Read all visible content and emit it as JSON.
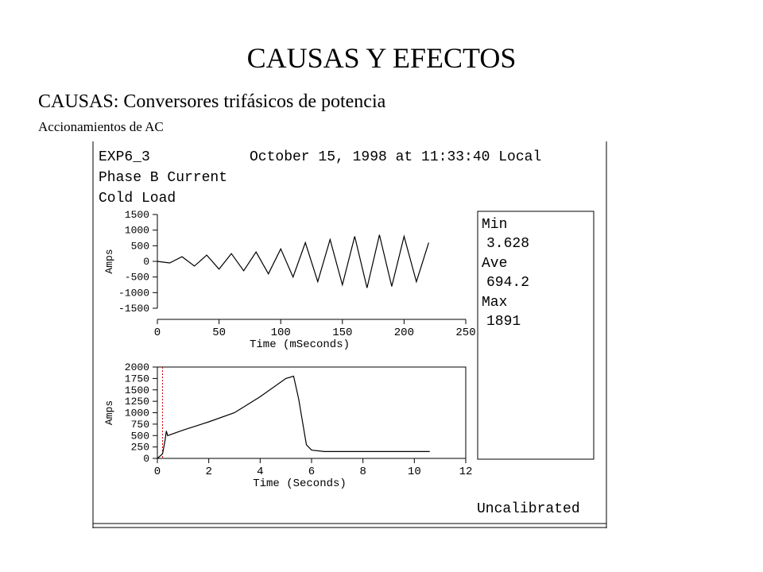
{
  "slide": {
    "title": "CAUSAS Y EFECTOS",
    "subtitle": "CAUSAS: Conversores trifásicos de potencia",
    "subsubtitle": "Accionamientos de AC"
  },
  "header": {
    "experiment": "EXP6_3",
    "datetime": "October 15, 1998 at 11:33:40 Local",
    "line2": "Phase B Current",
    "line3": "Cold Load"
  },
  "stats": {
    "min_label": "Min",
    "min_value": "3.628",
    "ave_label": "Ave",
    "ave_value": "694.2",
    "max_label": "Max",
    "max_value": "1891"
  },
  "footer": {
    "status": "Uncalibrated"
  },
  "colors": {
    "line": "#000000",
    "marker": "#cc0000"
  },
  "chart_data": [
    {
      "type": "line",
      "xlabel": "Time (mSeconds)",
      "ylabel": "Amps",
      "xlim": [
        0,
        250
      ],
      "ylim": [
        -1500,
        1500
      ],
      "xticks": [
        0,
        50,
        100,
        150,
        200,
        250
      ],
      "yticks": [
        1500,
        1000,
        500,
        0,
        -500,
        -1000,
        -1500
      ],
      "series": [
        {
          "x": [
            0,
            10,
            20,
            30,
            40,
            50,
            60,
            70,
            80,
            90,
            100,
            110,
            120,
            130,
            140,
            150,
            160,
            170,
            180,
            190,
            200,
            210,
            220
          ],
          "y": [
            0,
            -50,
            150,
            -150,
            200,
            -250,
            250,
            -300,
            300,
            -400,
            400,
            -500,
            600,
            -650,
            700,
            -750,
            800,
            -850,
            850,
            -800,
            800,
            -650,
            600
          ]
        }
      ]
    },
    {
      "type": "line",
      "xlabel": "Time (Seconds)",
      "ylabel": "Amps",
      "xlim": [
        0,
        12
      ],
      "ylim": [
        0,
        2000
      ],
      "xticks": [
        0,
        2,
        4,
        6,
        8,
        10,
        12
      ],
      "yticks": [
        2000,
        1750,
        1500,
        1250,
        1000,
        750,
        500,
        250,
        0
      ],
      "series": [
        {
          "x": [
            0,
            0.2,
            0.3,
            0.35,
            0.4,
            1,
            2,
            3,
            4,
            5,
            5.3,
            5.5,
            5.8,
            6,
            6.5,
            8,
            10,
            10.6
          ],
          "y": [
            0,
            100,
            400,
            600,
            500,
            620,
            800,
            1000,
            1350,
            1750,
            1800,
            1300,
            300,
            180,
            150,
            150,
            150,
            150
          ]
        }
      ]
    }
  ]
}
